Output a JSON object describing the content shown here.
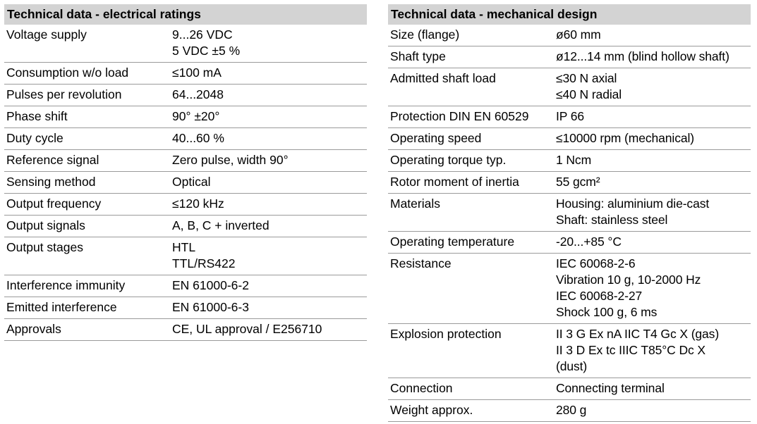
{
  "electrical": {
    "title": "Technical data - electrical ratings",
    "rows": [
      {
        "label": "Voltage supply",
        "value": "9...26 VDC\n5 VDC ±5 %"
      },
      {
        "label": "Consumption w/o load",
        "value": "≤100 mA"
      },
      {
        "label": "Pulses per revolution",
        "value": "64...2048"
      },
      {
        "label": "Phase shift",
        "value": "90° ±20°"
      },
      {
        "label": "Duty cycle",
        "value": "40...60 %"
      },
      {
        "label": "Reference signal",
        "value": "Zero pulse, width 90°"
      },
      {
        "label": "Sensing method",
        "value": "Optical"
      },
      {
        "label": "Output frequency",
        "value": "≤120 kHz"
      },
      {
        "label": "Output signals",
        "value": "A, B, C + inverted"
      },
      {
        "label": "Output stages",
        "value": "HTL\nTTL/RS422"
      },
      {
        "label": "Interference immunity",
        "value": "EN 61000-6-2"
      },
      {
        "label": "Emitted interference",
        "value": "EN 61000-6-3"
      },
      {
        "label": "Approvals",
        "value": "CE, UL approval / E256710"
      }
    ]
  },
  "mechanical": {
    "title": "Technical data - mechanical design",
    "rows": [
      {
        "label": "Size (flange)",
        "value": "ø60 mm"
      },
      {
        "label": "Shaft type",
        "value": "ø12...14 mm (blind hollow shaft)"
      },
      {
        "label": "Admitted shaft load",
        "value": "≤30 N axial\n≤40 N radial"
      },
      {
        "label": "Protection DIN EN 60529",
        "value": "IP 66"
      },
      {
        "label": "Operating speed",
        "value": "≤10000 rpm (mechanical)"
      },
      {
        "label": "Operating torque typ.",
        "value": "1 Ncm"
      },
      {
        "label": "Rotor moment of inertia",
        "value": "55 gcm²"
      },
      {
        "label": "Materials",
        "value": "Housing: aluminium die-cast\nShaft: stainless steel"
      },
      {
        "label": "Operating temperature",
        "value": "-20...+85 °C"
      },
      {
        "label": "Resistance",
        "value": "IEC 60068-2-6\nVibration 10 g, 10-2000 Hz\nIEC 60068-2-27\nShock 100 g, 6 ms"
      },
      {
        "label": "Explosion protection",
        "value": "II 3 G Ex nA IIC T4 Gc X (gas)\nII 3 D Ex tc IIIC T85°C Dc X\n(dust)"
      },
      {
        "label": "Connection",
        "value": "Connecting terminal"
      },
      {
        "label": "Weight approx.",
        "value": "280 g"
      }
    ]
  }
}
